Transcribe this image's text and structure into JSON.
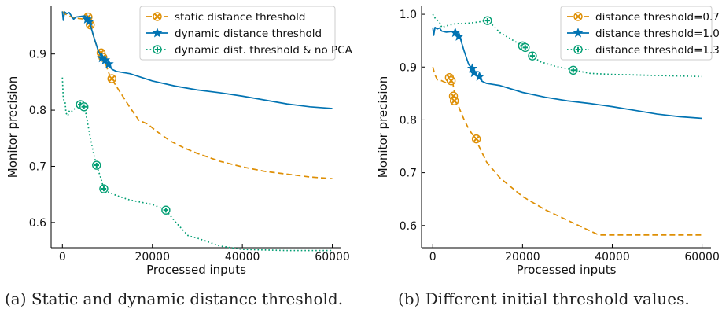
{
  "figure": {
    "caption_a": "(a) Static and dynamic distance threshold.",
    "caption_b": "(b) Different initial threshold values."
  },
  "colors": {
    "orange": "#de8f05",
    "blue": "#0173b2",
    "green": "#029e73"
  },
  "chart_data": [
    {
      "type": "line",
      "xlabel": "Processed inputs",
      "ylabel": "Monitor precision",
      "xlim": [
        -2500,
        62000
      ],
      "ylim": [
        0.555,
        0.985
      ],
      "xticks": [
        "0",
        "20000",
        "40000",
        "60000"
      ],
      "yticks": [
        "0.6",
        "0.7",
        "0.8",
        "0.9"
      ],
      "legend_position": "upper-right",
      "series": [
        {
          "name": "static distance threshold",
          "color": "#de8f05",
          "linestyle": "dashed",
          "marker": "x-circle",
          "points": [
            [
              0,
              0.976
            ],
            [
              400,
              0.972
            ],
            [
              1000,
              0.97
            ],
            [
              2000,
              0.966
            ],
            [
              3000,
              0.964
            ],
            [
              4000,
              0.963
            ],
            [
              5000,
              0.962
            ],
            [
              5500,
              0.965
            ],
            [
              6000,
              0.955
            ],
            [
              7000,
              0.93
            ],
            [
              8000,
              0.905
            ],
            [
              8600,
              0.895
            ],
            [
              9500,
              0.885
            ],
            [
              10500,
              0.862
            ],
            [
              11000,
              0.855
            ],
            [
              13000,
              0.83
            ],
            [
              15000,
              0.805
            ],
            [
              17000,
              0.782
            ],
            [
              19000,
              0.775
            ],
            [
              21000,
              0.762
            ],
            [
              24000,
              0.745
            ],
            [
              27000,
              0.733
            ],
            [
              30000,
              0.723
            ],
            [
              35000,
              0.709
            ],
            [
              40000,
              0.699
            ],
            [
              45000,
              0.691
            ],
            [
              50000,
              0.686
            ],
            [
              55000,
              0.681
            ],
            [
              60000,
              0.678
            ]
          ],
          "markers": [
            [
              5700,
              0.966
            ],
            [
              6200,
              0.952
            ],
            [
              8600,
              0.902
            ],
            [
              9000,
              0.894
            ],
            [
              11000,
              0.856
            ]
          ]
        },
        {
          "name": "dynamic distance threshold",
          "color": "#0173b2",
          "linestyle": "solid",
          "marker": "star",
          "points": [
            [
              0,
              0.976
            ],
            [
              200,
              0.96
            ],
            [
              500,
              0.975
            ],
            [
              1000,
              0.972
            ],
            [
              1500,
              0.974
            ],
            [
              2000,
              0.968
            ],
            [
              2500,
              0.962
            ],
            [
              3000,
              0.966
            ],
            [
              4000,
              0.967
            ],
            [
              5000,
              0.968
            ],
            [
              5500,
              0.962
            ],
            [
              6000,
              0.958
            ],
            [
              7000,
              0.93
            ],
            [
              8000,
              0.905
            ],
            [
              8800,
              0.893
            ],
            [
              9500,
              0.889
            ],
            [
              10000,
              0.882
            ],
            [
              11000,
              0.873
            ],
            [
              12000,
              0.869
            ],
            [
              15000,
              0.865
            ],
            [
              20000,
              0.852
            ],
            [
              25000,
              0.843
            ],
            [
              30000,
              0.836
            ],
            [
              35000,
              0.831
            ],
            [
              40000,
              0.825
            ],
            [
              45000,
              0.818
            ],
            [
              50000,
              0.811
            ],
            [
              55000,
              0.806
            ],
            [
              60000,
              0.803
            ]
          ],
          "markers": [
            [
              5500,
              0.962
            ],
            [
              6000,
              0.958
            ],
            [
              8800,
              0.893
            ],
            [
              9500,
              0.889
            ],
            [
              10300,
              0.882
            ]
          ]
        },
        {
          "name": "dynamic dist. threshold & no PCA",
          "color": "#029e73",
          "linestyle": "dotted",
          "marker": "plus-circle",
          "points": [
            [
              0,
              0.858
            ],
            [
              200,
              0.82
            ],
            [
              600,
              0.815
            ],
            [
              800,
              0.795
            ],
            [
              1200,
              0.79
            ],
            [
              1600,
              0.8
            ],
            [
              2200,
              0.798
            ],
            [
              3000,
              0.805
            ],
            [
              3800,
              0.81
            ],
            [
              4500,
              0.806
            ],
            [
              5200,
              0.795
            ],
            [
              6000,
              0.76
            ],
            [
              7000,
              0.72
            ],
            [
              7600,
              0.702
            ],
            [
              8500,
              0.68
            ],
            [
              9200,
              0.66
            ],
            [
              10000,
              0.655
            ],
            [
              12000,
              0.648
            ],
            [
              15000,
              0.64
            ],
            [
              20000,
              0.632
            ],
            [
              23000,
              0.622
            ],
            [
              25000,
              0.602
            ],
            [
              28000,
              0.576
            ],
            [
              30000,
              0.572
            ],
            [
              35000,
              0.558
            ],
            [
              40000,
              0.552
            ],
            [
              50000,
              0.55
            ],
            [
              60000,
              0.55
            ]
          ],
          "markers": [
            [
              4000,
              0.81
            ],
            [
              4800,
              0.806
            ],
            [
              7600,
              0.702
            ],
            [
              9200,
              0.66
            ],
            [
              23000,
              0.622
            ]
          ]
        }
      ]
    },
    {
      "type": "line",
      "xlabel": "Processed inputs",
      "ylabel": "Monitor precision",
      "xlim": [
        -2500,
        62000
      ],
      "ylim": [
        0.558,
        1.015
      ],
      "xticks": [
        "0",
        "20000",
        "40000",
        "60000"
      ],
      "yticks": [
        "0.6",
        "0.7",
        "0.8",
        "0.9",
        "1.0"
      ],
      "legend_position": "upper-right",
      "series": [
        {
          "name": "distance threshold=0.7",
          "color": "#de8f05",
          "linestyle": "dashed",
          "marker": "x-circle",
          "points": [
            [
              0,
              0.9
            ],
            [
              500,
              0.885
            ],
            [
              1000,
              0.876
            ],
            [
              2000,
              0.874
            ],
            [
              3000,
              0.87
            ],
            [
              4000,
              0.88
            ],
            [
              4500,
              0.868
            ],
            [
              5000,
              0.842
            ],
            [
              6000,
              0.82
            ],
            [
              7000,
              0.8
            ],
            [
              8000,
              0.783
            ],
            [
              9500,
              0.764
            ],
            [
              12000,
              0.72
            ],
            [
              15000,
              0.69
            ],
            [
              20000,
              0.655
            ],
            [
              25000,
              0.63
            ],
            [
              30000,
              0.61
            ],
            [
              35000,
              0.59
            ],
            [
              37000,
              0.582
            ],
            [
              45000,
              0.582
            ],
            [
              60000,
              0.582
            ]
          ],
          "markers": [
            [
              3700,
              0.88
            ],
            [
              4100,
              0.874
            ],
            [
              4600,
              0.845
            ],
            [
              4800,
              0.836
            ],
            [
              9700,
              0.764
            ]
          ]
        },
        {
          "name": "distance threshold=1.0",
          "color": "#0173b2",
          "linestyle": "solid",
          "marker": "star",
          "points": [
            [
              0,
              0.975
            ],
            [
              200,
              0.96
            ],
            [
              500,
              0.975
            ],
            [
              1000,
              0.972
            ],
            [
              1500,
              0.974
            ],
            [
              2000,
              0.968
            ],
            [
              3000,
              0.966
            ],
            [
              4000,
              0.967
            ],
            [
              5000,
              0.968
            ],
            [
              5500,
              0.962
            ],
            [
              6000,
              0.958
            ],
            [
              7000,
              0.93
            ],
            [
              8000,
              0.905
            ],
            [
              8800,
              0.897
            ],
            [
              9500,
              0.889
            ],
            [
              10000,
              0.883
            ],
            [
              11000,
              0.873
            ],
            [
              12000,
              0.869
            ],
            [
              15000,
              0.865
            ],
            [
              20000,
              0.852
            ],
            [
              25000,
              0.843
            ],
            [
              30000,
              0.836
            ],
            [
              35000,
              0.831
            ],
            [
              40000,
              0.825
            ],
            [
              45000,
              0.818
            ],
            [
              50000,
              0.811
            ],
            [
              55000,
              0.806
            ],
            [
              60000,
              0.803
            ]
          ],
          "markers": [
            [
              5000,
              0.965
            ],
            [
              5800,
              0.958
            ],
            [
              8800,
              0.897
            ],
            [
              9200,
              0.889
            ],
            [
              10400,
              0.882
            ]
          ]
        },
        {
          "name": "distance threshold=1.3",
          "color": "#029e73",
          "linestyle": "dotted",
          "marker": "plus-circle",
          "points": [
            [
              0,
              1.0
            ],
            [
              300,
              0.995
            ],
            [
              800,
              0.99
            ],
            [
              1500,
              0.985
            ],
            [
              2000,
              0.975
            ],
            [
              3000,
              0.978
            ],
            [
              5000,
              0.982
            ],
            [
              8000,
              0.983
            ],
            [
              10000,
              0.985
            ],
            [
              12000,
              0.988
            ],
            [
              13000,
              0.982
            ],
            [
              15000,
              0.965
            ],
            [
              18000,
              0.95
            ],
            [
              20000,
              0.94
            ],
            [
              21000,
              0.935
            ],
            [
              22000,
              0.921
            ],
            [
              24000,
              0.91
            ],
            [
              27000,
              0.902
            ],
            [
              31000,
              0.895
            ],
            [
              35000,
              0.888
            ],
            [
              40000,
              0.886
            ],
            [
              45000,
              0.885
            ],
            [
              50000,
              0.884
            ],
            [
              55000,
              0.883
            ],
            [
              60000,
              0.882
            ]
          ],
          "markers": [
            [
              12200,
              0.988
            ],
            [
              20000,
              0.94
            ],
            [
              20600,
              0.937
            ],
            [
              22200,
              0.921
            ],
            [
              31300,
              0.894
            ]
          ]
        }
      ]
    }
  ]
}
